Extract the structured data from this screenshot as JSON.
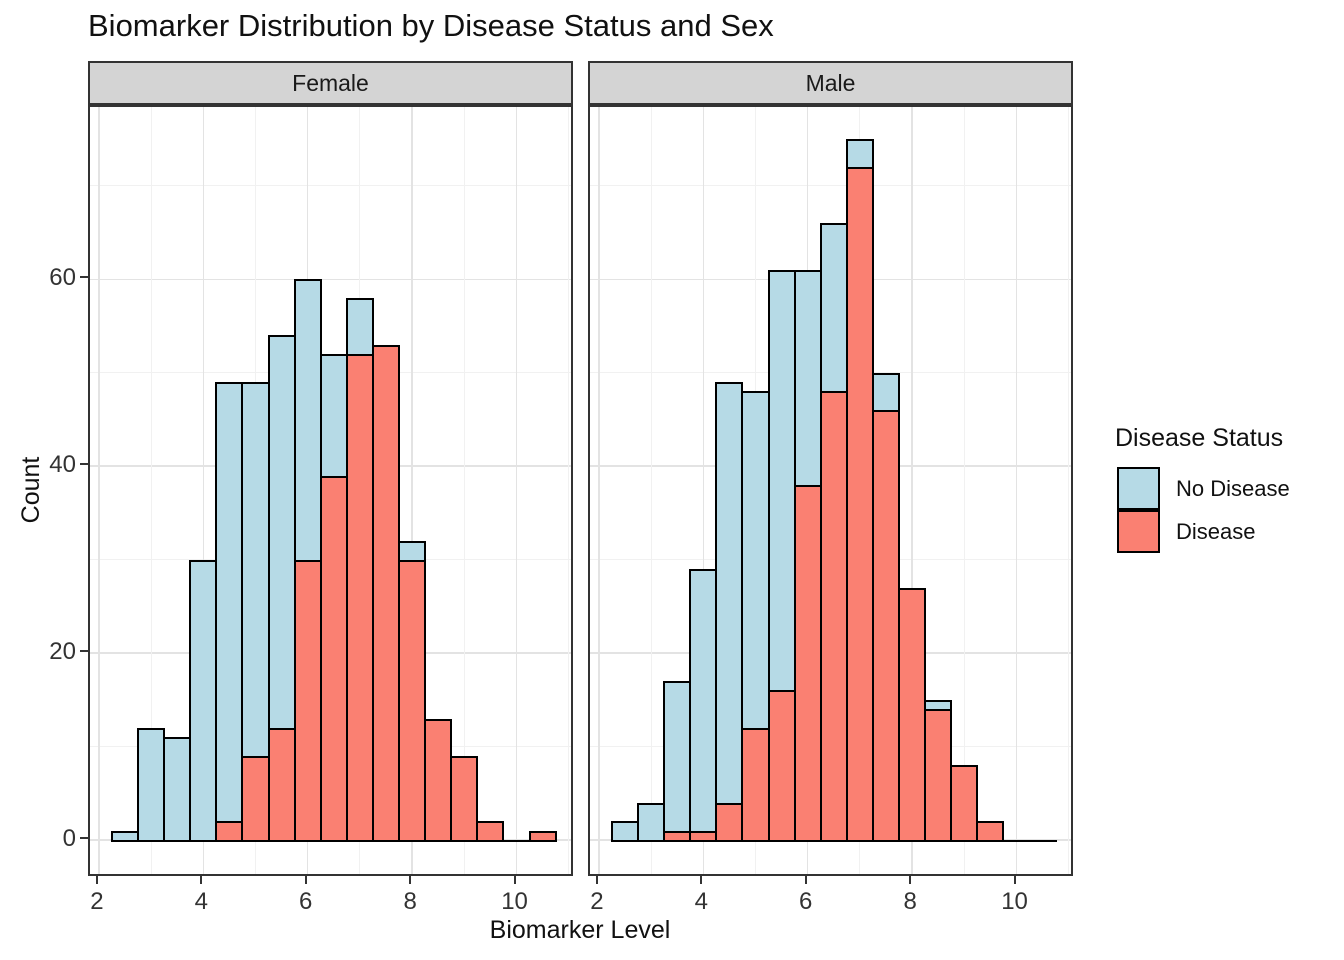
{
  "title": "Biomarker Distribution by Disease Status and Sex",
  "axes": {
    "xlabel": "Biomarker Level",
    "ylabel": "Count"
  },
  "legend": {
    "title": "Disease Status",
    "items": [
      {
        "label": "No Disease",
        "color": "#B6DAE6"
      },
      {
        "label": "Disease",
        "color": "#FA8072"
      }
    ]
  },
  "colors": {
    "no_disease_fill": "#B6DAE6",
    "disease_fill": "#FA8072",
    "bar_stroke": "#000000",
    "strip_fill": "#D4D4D4",
    "panel_border": "#333333",
    "grid_major": "#E3E3E3",
    "grid_minor": "#F1F1F1",
    "background": "#FFFFFF"
  },
  "chart_data": {
    "type": "bar",
    "subtype": "overlaid histogram, binwidth 0.5, faceted by sex",
    "title": "Biomarker Distribution by Disease Status and Sex",
    "xlabel": "Biomarker Level",
    "ylabel": "Count",
    "legend_position": "right",
    "grid": "on",
    "xlim": [
      1.83,
      11.12
    ],
    "ylim": [
      -4,
      78.3
    ],
    "x_major_ticks": [
      2,
      4,
      6,
      8,
      10
    ],
    "x_minor_ticks": [
      3,
      5,
      7,
      9,
      11
    ],
    "y_major_ticks": [
      0,
      20,
      40,
      60
    ],
    "y_minor_ticks": [
      10,
      30,
      50,
      70
    ],
    "bin_width": 0.5,
    "bin_centers": [
      2.5,
      3,
      3.5,
      4,
      4.5,
      5,
      5.5,
      6,
      6.5,
      7,
      7.5,
      8,
      8.5,
      9,
      9.5,
      10,
      10.5
    ],
    "baseline_extent": [
      2.25,
      10.75
    ],
    "facets": [
      {
        "label": "Female",
        "series": [
          {
            "name": "No Disease",
            "color": "#B6DAE6",
            "values": [
              1,
              12,
              11,
              30,
              49,
              49,
              54,
              60,
              52,
              58,
              null,
              32,
              null,
              null,
              null,
              null,
              null
            ]
          },
          {
            "name": "Disease",
            "color": "#FA8072",
            "values": [
              null,
              null,
              null,
              null,
              2,
              9,
              12,
              30,
              39,
              52,
              53,
              30,
              13,
              9,
              2,
              null,
              1
            ]
          }
        ]
      },
      {
        "label": "Male",
        "series": [
          {
            "name": "No Disease",
            "color": "#B6DAE6",
            "values": [
              2,
              4,
              17,
              29,
              49,
              48,
              61,
              61,
              66,
              75,
              50,
              null,
              15,
              null,
              null,
              null,
              null
            ]
          },
          {
            "name": "Disease",
            "color": "#FA8072",
            "values": [
              null,
              null,
              1,
              1,
              4,
              12,
              16,
              38,
              48,
              72,
              46,
              27,
              14,
              8,
              2,
              null,
              null
            ]
          }
        ]
      }
    ]
  }
}
